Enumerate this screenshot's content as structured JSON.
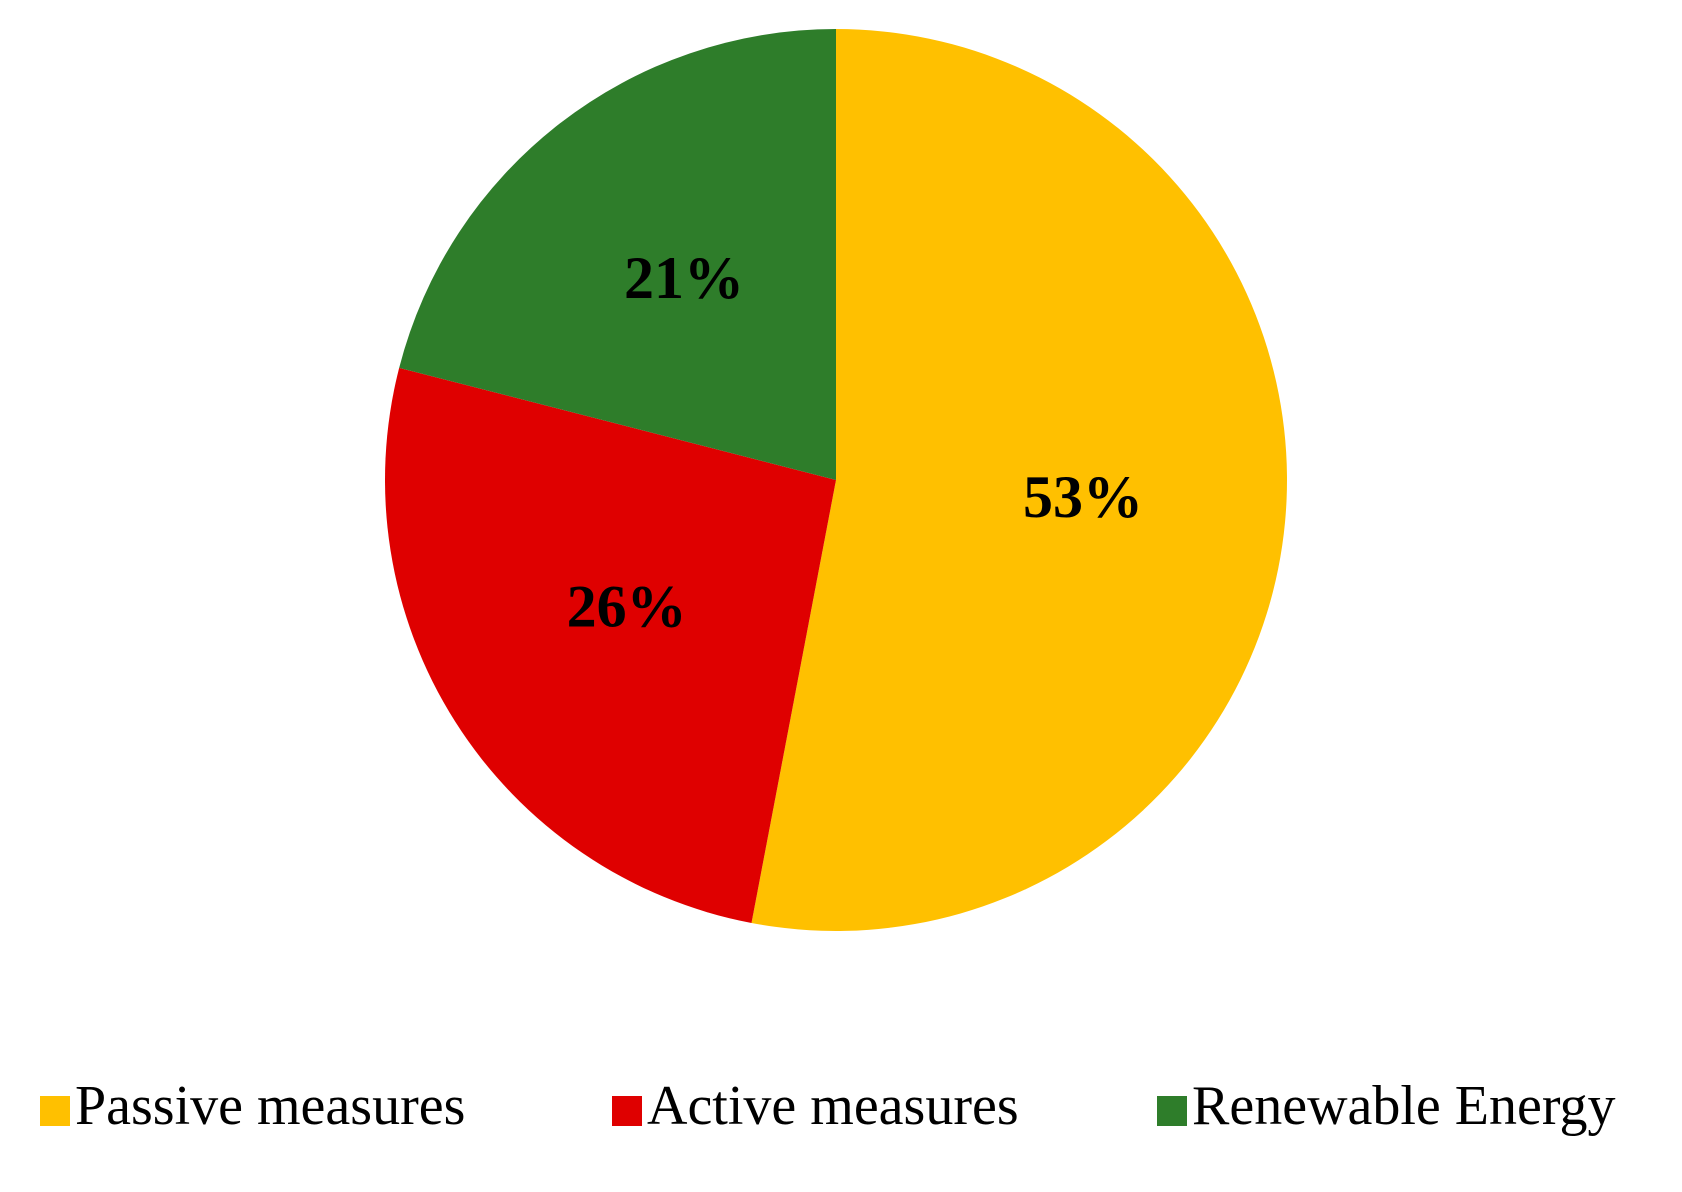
{
  "chart_data": {
    "type": "pie",
    "categories": [
      "Passive measures",
      "Active measures",
      "Renewable Energy"
    ],
    "values": [
      53,
      26,
      21
    ],
    "value_labels": [
      "53%",
      "26%",
      "21%"
    ],
    "colors": [
      "#FFC000",
      "#DF0000",
      "#2E7D2A"
    ]
  }
}
